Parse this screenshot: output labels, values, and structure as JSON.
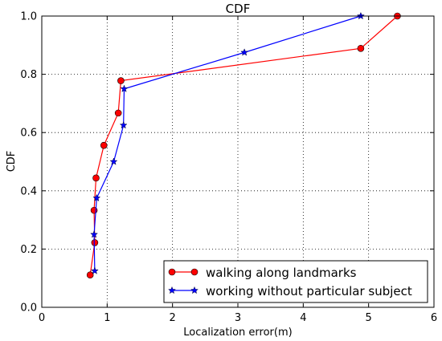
{
  "chart_data": {
    "type": "line",
    "title": "CDF",
    "xlabel": "Localization error(m)",
    "ylabel": "CDF",
    "xlim": [
      0,
      6
    ],
    "ylim": [
      0,
      1
    ],
    "x_ticks": [
      0,
      1,
      2,
      3,
      4,
      5,
      6
    ],
    "x_tick_labels": [
      "0",
      "1",
      "2",
      "3",
      "4",
      "5",
      "6"
    ],
    "y_ticks": [
      0,
      0.2,
      0.4,
      0.6,
      0.8,
      1.0
    ],
    "y_tick_labels": [
      "0.0",
      "0.2",
      "0.4",
      "0.6",
      "0.8",
      "1.0"
    ],
    "grid": true,
    "grid_style": "dotted",
    "legend_position": "lower-right",
    "series": [
      {
        "name": "walking along landmarks",
        "color": "#ff0000",
        "marker": "circle",
        "x": [
          0.74,
          0.81,
          0.8,
          0.83,
          0.95,
          1.17,
          1.21,
          4.88,
          5.44
        ],
        "y": [
          0.111,
          0.222,
          0.333,
          0.444,
          0.556,
          0.667,
          0.778,
          0.889,
          1.0
        ]
      },
      {
        "name": "working without particular subject",
        "color": "#0000ff",
        "marker": "star",
        "x": [
          0.81,
          0.8,
          0.84,
          1.1,
          1.25,
          1.26,
          3.1,
          4.88
        ],
        "y": [
          0.125,
          0.25,
          0.375,
          0.5,
          0.625,
          0.75,
          0.875,
          1.0
        ]
      }
    ]
  }
}
